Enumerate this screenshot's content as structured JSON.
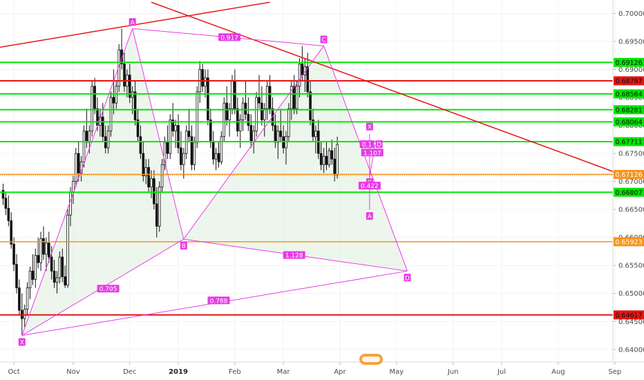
{
  "chart_data": {
    "type": "candlestick-harmonic",
    "x_ticks": [
      {
        "label": "Oct",
        "bold": false,
        "idx": 4
      },
      {
        "label": "Nov",
        "bold": false,
        "idx": 26
      },
      {
        "label": "Dec",
        "bold": false,
        "idx": 47
      },
      {
        "label": "2019",
        "bold": true,
        "idx": 65
      },
      {
        "label": "Feb",
        "bold": false,
        "idx": 86
      },
      {
        "label": "Mar",
        "bold": false,
        "idx": 104
      },
      {
        "label": "Apr",
        "bold": false,
        "idx": 125
      },
      {
        "label": "May",
        "bold": false,
        "idx": 146
      },
      {
        "label": "Jun",
        "bold": false,
        "idx": 167
      },
      {
        "label": "Jul",
        "bold": false,
        "idx": 185
      },
      {
        "label": "Aug",
        "bold": false,
        "idx": 206
      },
      {
        "label": "Sep",
        "bold": false,
        "idx": 227
      }
    ],
    "y_ticks": [
      0.7,
      0.695,
      0.69,
      0.685,
      0.68,
      0.675,
      0.67,
      0.665,
      0.66,
      0.655,
      0.65,
      0.645,
      0.64
    ],
    "y_range": [
      0.638,
      0.702
    ],
    "horizontal_levels": [
      {
        "value": "0.69126",
        "price": 0.69126,
        "color": "#00e600"
      },
      {
        "value": "0.68797",
        "price": 0.68797,
        "color": "#e61414"
      },
      {
        "value": "0.68564",
        "price": 0.68564,
        "color": "#00e600"
      },
      {
        "value": "0.68281",
        "price": 0.68281,
        "color": "#00e600"
      },
      {
        "value": "0.68064",
        "price": 0.68064,
        "color": "#00e600"
      },
      {
        "value": "0.67711",
        "price": 0.67711,
        "color": "#00e600"
      },
      {
        "value": "0.67126",
        "price": 0.67126,
        "color": "#f7931a"
      },
      {
        "value": "0.66807",
        "price": 0.66807,
        "color": "#00e600"
      },
      {
        "value": "0.65923",
        "price": 0.65923,
        "color": "#f7931a"
      },
      {
        "value": "0.64617",
        "price": 0.64617,
        "color": "#e61414"
      }
    ],
    "trend_lines": [
      {
        "color": "#e61414",
        "from": {
          "idx": -7,
          "price": 0.6935
        },
        "to": {
          "idx": 99,
          "price": 0.702
        }
      },
      {
        "color": "#e61414",
        "from": {
          "idx": 55,
          "price": 0.702
        },
        "to": {
          "idx": 229,
          "price": 0.6713
        }
      }
    ],
    "harmonic_pattern_1": {
      "color": "#e83ae8",
      "points": [
        {
          "label": "X",
          "idx": 7,
          "price": 0.6425
        },
        {
          "label": "A",
          "idx": 48,
          "price": 0.6973
        },
        {
          "label": "B",
          "idx": 67,
          "price": 0.6597
        },
        {
          "label": "C",
          "idx": 119,
          "price": 0.6942
        },
        {
          "label": "D",
          "idx": 150,
          "price": 0.654
        }
      ],
      "ratios": [
        {
          "label": "0.705",
          "idx": 39,
          "price": 0.6508
        },
        {
          "label": "0.917",
          "idx": 84,
          "price": 0.6957
        },
        {
          "label": "1.128",
          "idx": 108,
          "price": 0.6568
        },
        {
          "label": "0.788",
          "idx": 80,
          "price": 0.6487
        }
      ]
    },
    "harmonic_pattern_2": {
      "color": "#e83ae8",
      "points": [
        {
          "label": "X",
          "idx": 136,
          "price": 0.6785
        },
        {
          "label": "A",
          "idx": 136,
          "price": 0.665
        },
        {
          "label": "C",
          "idx": 136,
          "price": 0.6708
        },
        {
          "label": "D",
          "idx": 138,
          "price": 0.6766
        }
      ],
      "ratios": [
        {
          "label": "0.1",
          "idx": 135,
          "price": 0.6766
        },
        {
          "label": "1.107",
          "idx": 137,
          "price": 0.6751
        },
        {
          "label": "0.422",
          "idx": 136,
          "price": 0.6692
        }
      ]
    },
    "candles_weekly_ohlc_note": "derived daily candles below, in data units",
    "candles": [
      [
        0.6684,
        0.6696,
        0.6658,
        0.667
      ],
      [
        0.667,
        0.668,
        0.664,
        0.6652
      ],
      [
        0.6652,
        0.6675,
        0.662,
        0.663
      ],
      [
        0.663,
        0.6645,
        0.658,
        0.6588
      ],
      [
        0.6588,
        0.66,
        0.654,
        0.6552
      ],
      [
        0.6552,
        0.657,
        0.65,
        0.651
      ],
      [
        0.651,
        0.6525,
        0.646,
        0.647
      ],
      [
        0.647,
        0.65,
        0.6425,
        0.6455
      ],
      [
        0.6455,
        0.648,
        0.644,
        0.6472
      ],
      [
        0.6472,
        0.652,
        0.646,
        0.651
      ],
      [
        0.651,
        0.6548,
        0.649,
        0.654
      ],
      [
        0.654,
        0.657,
        0.6515,
        0.6525
      ],
      [
        0.6525,
        0.658,
        0.651,
        0.6568
      ],
      [
        0.6568,
        0.66,
        0.6545,
        0.6555
      ],
      [
        0.6555,
        0.661,
        0.654,
        0.6598
      ],
      [
        0.6598,
        0.662,
        0.656,
        0.657
      ],
      [
        0.657,
        0.66,
        0.654,
        0.659
      ],
      [
        0.659,
        0.661,
        0.6555,
        0.6565
      ],
      [
        0.6565,
        0.6585,
        0.6525,
        0.654
      ],
      [
        0.654,
        0.656,
        0.651,
        0.652
      ],
      [
        0.652,
        0.654,
        0.65,
        0.6528
      ],
      [
        0.6528,
        0.6575,
        0.6518,
        0.6565
      ],
      [
        0.6565,
        0.658,
        0.652,
        0.653
      ],
      [
        0.653,
        0.655,
        0.651,
        0.6515
      ],
      [
        0.6515,
        0.665,
        0.651,
        0.664
      ],
      [
        0.664,
        0.669,
        0.662,
        0.668
      ],
      [
        0.668,
        0.671,
        0.666,
        0.67
      ],
      [
        0.67,
        0.676,
        0.669,
        0.675
      ],
      [
        0.675,
        0.677,
        0.67,
        0.6715
      ],
      [
        0.6715,
        0.6745,
        0.67,
        0.6735
      ],
      [
        0.6735,
        0.68,
        0.6725,
        0.679
      ],
      [
        0.679,
        0.683,
        0.676,
        0.677
      ],
      [
        0.677,
        0.68,
        0.675,
        0.679
      ],
      [
        0.679,
        0.688,
        0.678,
        0.687
      ],
      [
        0.687,
        0.6885,
        0.682,
        0.683
      ],
      [
        0.683,
        0.685,
        0.679,
        0.68
      ],
      [
        0.68,
        0.683,
        0.678,
        0.6815
      ],
      [
        0.6815,
        0.684,
        0.677,
        0.678
      ],
      [
        0.678,
        0.68,
        0.675,
        0.676
      ],
      [
        0.676,
        0.68,
        0.675,
        0.679
      ],
      [
        0.679,
        0.686,
        0.678,
        0.685
      ],
      [
        0.685,
        0.69,
        0.682,
        0.684
      ],
      [
        0.684,
        0.688,
        0.683,
        0.687
      ],
      [
        0.687,
        0.6945,
        0.686,
        0.6935
      ],
      [
        0.6935,
        0.6973,
        0.69,
        0.691
      ],
      [
        0.691,
        0.693,
        0.686,
        0.687
      ],
      [
        0.687,
        0.69,
        0.685,
        0.689
      ],
      [
        0.689,
        0.691,
        0.684,
        0.685
      ],
      [
        0.685,
        0.687,
        0.682,
        0.686
      ],
      [
        0.686,
        0.688,
        0.68,
        0.681
      ],
      [
        0.681,
        0.683,
        0.677,
        0.678
      ],
      [
        0.678,
        0.68,
        0.674,
        0.675
      ],
      [
        0.675,
        0.677,
        0.67,
        0.671
      ],
      [
        0.671,
        0.674,
        0.6695,
        0.6725
      ],
      [
        0.6725,
        0.674,
        0.668,
        0.669
      ],
      [
        0.669,
        0.672,
        0.667,
        0.6705
      ],
      [
        0.6705,
        0.672,
        0.665,
        0.666
      ],
      [
        0.666,
        0.669,
        0.66,
        0.662
      ],
      [
        0.662,
        0.67,
        0.661,
        0.669
      ],
      [
        0.669,
        0.674,
        0.668,
        0.673
      ],
      [
        0.673,
        0.678,
        0.672,
        0.677
      ],
      [
        0.677,
        0.68,
        0.674,
        0.675
      ],
      [
        0.675,
        0.682,
        0.674,
        0.681
      ],
      [
        0.681,
        0.684,
        0.678,
        0.679
      ],
      [
        0.679,
        0.681,
        0.676,
        0.68
      ],
      [
        0.68,
        0.682,
        0.675,
        0.676
      ],
      [
        0.676,
        0.679,
        0.672,
        0.673
      ],
      [
        0.673,
        0.676,
        0.6705,
        0.675
      ],
      [
        0.675,
        0.68,
        0.674,
        0.679
      ],
      [
        0.679,
        0.683,
        0.677,
        0.678
      ],
      [
        0.678,
        0.68,
        0.672,
        0.673
      ],
      [
        0.673,
        0.678,
        0.672,
        0.677
      ],
      [
        0.677,
        0.687,
        0.676,
        0.686
      ],
      [
        0.686,
        0.6915,
        0.684,
        0.69
      ],
      [
        0.69,
        0.691,
        0.686,
        0.687
      ],
      [
        0.687,
        0.69,
        0.685,
        0.6885
      ],
      [
        0.6885,
        0.69,
        0.68,
        0.681
      ],
      [
        0.681,
        0.683,
        0.676,
        0.677
      ],
      [
        0.677,
        0.679,
        0.673,
        0.674
      ],
      [
        0.674,
        0.676,
        0.672,
        0.675
      ],
      [
        0.675,
        0.677,
        0.6725,
        0.6735
      ],
      [
        0.6735,
        0.679,
        0.673,
        0.678
      ],
      [
        0.678,
        0.685,
        0.677,
        0.684
      ],
      [
        0.684,
        0.687,
        0.68,
        0.681
      ],
      [
        0.681,
        0.684,
        0.678,
        0.683
      ],
      [
        0.683,
        0.689,
        0.682,
        0.688
      ],
      [
        0.688,
        0.69,
        0.682,
        0.683
      ],
      [
        0.683,
        0.685,
        0.678,
        0.679
      ],
      [
        0.679,
        0.682,
        0.676,
        0.681
      ],
      [
        0.681,
        0.685,
        0.679,
        0.684
      ],
      [
        0.684,
        0.688,
        0.681,
        0.682
      ],
      [
        0.682,
        0.685,
        0.679,
        0.68
      ],
      [
        0.68,
        0.682,
        0.676,
        0.677
      ],
      [
        0.677,
        0.68,
        0.675,
        0.679
      ],
      [
        0.679,
        0.686,
        0.678,
        0.685
      ],
      [
        0.685,
        0.689,
        0.683,
        0.684
      ],
      [
        0.684,
        0.687,
        0.68,
        0.681
      ],
      [
        0.681,
        0.684,
        0.678,
        0.683
      ],
      [
        0.683,
        0.688,
        0.681,
        0.687
      ],
      [
        0.687,
        0.689,
        0.682,
        0.683
      ],
      [
        0.683,
        0.685,
        0.679,
        0.68
      ],
      [
        0.68,
        0.682,
        0.676,
        0.677
      ],
      [
        0.677,
        0.68,
        0.674,
        0.679
      ],
      [
        0.679,
        0.683,
        0.677,
        0.678
      ],
      [
        0.678,
        0.68,
        0.675,
        0.676
      ],
      [
        0.676,
        0.679,
        0.673,
        0.678
      ],
      [
        0.678,
        0.684,
        0.677,
        0.683
      ],
      [
        0.683,
        0.688,
        0.681,
        0.687
      ],
      [
        0.687,
        0.689,
        0.682,
        0.683
      ],
      [
        0.683,
        0.688,
        0.682,
        0.687
      ],
      [
        0.687,
        0.692,
        0.685,
        0.691
      ],
      [
        0.691,
        0.6942,
        0.688,
        0.689
      ],
      [
        0.689,
        0.692,
        0.686,
        0.6905
      ],
      [
        0.6905,
        0.693,
        0.685,
        0.686
      ],
      [
        0.686,
        0.688,
        0.68,
        0.681
      ],
      [
        0.681,
        0.683,
        0.677,
        0.678
      ],
      [
        0.678,
        0.68,
        0.675,
        0.679
      ],
      [
        0.679,
        0.681,
        0.674,
        0.675
      ],
      [
        0.675,
        0.677,
        0.672,
        0.673
      ],
      [
        0.673,
        0.676,
        0.6715,
        0.6745
      ],
      [
        0.6745,
        0.677,
        0.672,
        0.673
      ],
      [
        0.673,
        0.676,
        0.6725,
        0.6755
      ],
      [
        0.6755,
        0.6775,
        0.673,
        0.674
      ],
      [
        0.674,
        0.676,
        0.67,
        0.6712
      ],
      [
        0.6712,
        0.678,
        0.6705,
        0.6766
      ]
    ]
  }
}
